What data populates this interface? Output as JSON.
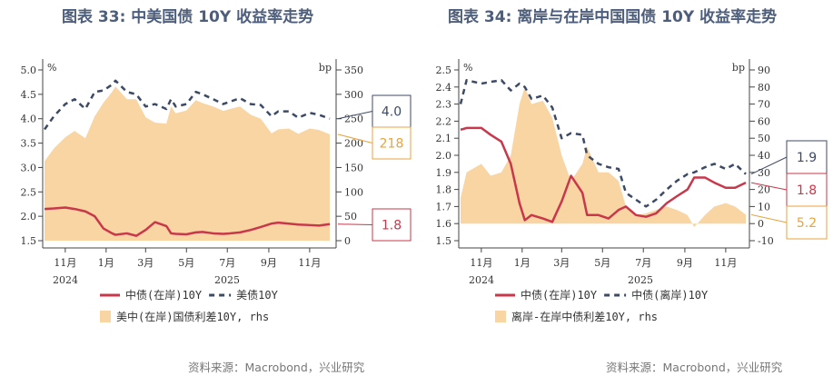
{
  "colors": {
    "onshore": "#c8374a",
    "us": "#3d4a66",
    "spread": "#f8d5a3",
    "spread_label": "#e8a33c",
    "title": "#4d5e7c"
  },
  "source": "资料来源：Macrobond，兴业研究",
  "chart_data": [
    {
      "type": "line",
      "title": "图表 33: 中美国债 10Y 收益率走势",
      "left_unit": "%",
      "right_unit": "bp",
      "ylim": [
        1.5,
        5.0
      ],
      "y2lim": [
        0,
        350
      ],
      "yticks": [
        "5.0",
        "4.5",
        "4.0",
        "3.5",
        "3.0",
        "2.5",
        "2.0",
        "1.5"
      ],
      "y2ticks": [
        "350",
        "300",
        "250",
        "200",
        "150",
        "100",
        "50",
        "0"
      ],
      "xticks": [
        "11月",
        "1月",
        "3月",
        "5月",
        "7月",
        "9月",
        "11月"
      ],
      "xtick_dates": [
        "2024-11-01",
        "2025-01-01",
        "2025-03-01",
        "2025-05-01",
        "2025-07-01",
        "2025-09-01",
        "2025-11-01"
      ],
      "years": [
        "2024",
        "2025"
      ],
      "x": [
        "2024-10-01",
        "2024-10-15",
        "2024-11-01",
        "2024-11-15",
        "2024-12-01",
        "2024-12-15",
        "2024-12-28",
        "2025-01-10",
        "2025-01-15",
        "2025-02-01",
        "2025-02-15",
        "2025-03-01",
        "2025-03-15",
        "2025-04-01",
        "2025-04-08",
        "2025-04-15",
        "2025-05-01",
        "2025-05-15",
        "2025-05-25",
        "2025-06-10",
        "2025-06-25",
        "2025-07-05",
        "2025-07-20",
        "2025-08-05",
        "2025-08-20",
        "2025-09-05",
        "2025-09-15",
        "2025-10-01",
        "2025-10-15",
        "2025-11-01",
        "2025-11-15",
        "2025-12-01"
      ],
      "series": [
        {
          "name": "中债(在岸)10Y",
          "axis": "left",
          "style": "solid",
          "values": [
            2.15,
            2.16,
            2.18,
            2.15,
            2.1,
            2.0,
            1.75,
            1.65,
            1.62,
            1.65,
            1.6,
            1.72,
            1.88,
            1.8,
            1.65,
            1.64,
            1.63,
            1.67,
            1.68,
            1.65,
            1.64,
            1.65,
            1.67,
            1.72,
            1.78,
            1.85,
            1.87,
            1.85,
            1.83,
            1.82,
            1.81,
            1.84
          ]
        },
        {
          "name": "美债10Y",
          "axis": "left",
          "style": "dash",
          "values": [
            3.78,
            4.05,
            4.3,
            4.4,
            4.2,
            4.55,
            4.58,
            4.7,
            4.78,
            4.55,
            4.5,
            4.25,
            4.3,
            4.2,
            4.4,
            4.25,
            4.3,
            4.55,
            4.5,
            4.4,
            4.3,
            4.35,
            4.42,
            4.3,
            4.28,
            4.05,
            4.15,
            4.15,
            4.02,
            4.12,
            4.08,
            4.0
          ]
        },
        {
          "name": "美中(在岸)国债利差10Y, rhs",
          "axis": "right",
          "style": "area",
          "values": [
            163,
            189,
            212,
            225,
            210,
            255,
            283,
            305,
            316,
            290,
            290,
            253,
            242,
            240,
            275,
            261,
            267,
            288,
            282,
            275,
            266,
            270,
            275,
            258,
            250,
            220,
            228,
            230,
            219,
            230,
            227,
            218
          ]
        }
      ],
      "callouts": [
        {
          "value": "4.0",
          "series": "us"
        },
        {
          "value": "218",
          "series": "spread"
        },
        {
          "value": "1.8",
          "series": "onshore"
        }
      ]
    },
    {
      "type": "line",
      "title": "图表 34: 离岸与在岸中国国债 10Y 收益率走势",
      "left_unit": "%",
      "right_unit": "bp",
      "ylim": [
        1.5,
        2.5
      ],
      "y2lim": [
        -10,
        90
      ],
      "yticks": [
        "2.5",
        "2.4",
        "2.3",
        "2.2",
        "2.1",
        "2.0",
        "1.9",
        "1.8",
        "1.7",
        "1.6",
        "1.5"
      ],
      "y2ticks": [
        "90",
        "80",
        "70",
        "60",
        "50",
        "40",
        "30",
        "20",
        "10",
        "0",
        "-10"
      ],
      "xticks": [
        "11月",
        "1月",
        "3月",
        "5月",
        "7月",
        "9月",
        "11月"
      ],
      "xtick_dates": [
        "2024-11-01",
        "2025-01-01",
        "2025-03-01",
        "2025-05-01",
        "2025-07-01",
        "2025-09-01",
        "2025-11-01"
      ],
      "years": [
        "2024",
        "2025"
      ],
      "x": [
        "2024-10-01",
        "2024-10-10",
        "2024-11-01",
        "2024-11-15",
        "2024-12-01",
        "2024-12-15",
        "2024-12-28",
        "2025-01-05",
        "2025-01-15",
        "2025-02-01",
        "2025-02-15",
        "2025-03-01",
        "2025-03-15",
        "2025-04-01",
        "2025-04-08",
        "2025-04-25",
        "2025-05-10",
        "2025-05-25",
        "2025-06-05",
        "2025-06-20",
        "2025-07-05",
        "2025-07-20",
        "2025-08-05",
        "2025-08-20",
        "2025-09-05",
        "2025-09-15",
        "2025-10-01",
        "2025-10-15",
        "2025-11-01",
        "2025-11-15",
        "2025-12-01"
      ],
      "series": [
        {
          "name": "中债(在岸)10Y",
          "axis": "left",
          "style": "solid",
          "values": [
            2.15,
            2.16,
            2.16,
            2.12,
            2.08,
            1.95,
            1.72,
            1.62,
            1.65,
            1.63,
            1.61,
            1.73,
            1.88,
            1.78,
            1.65,
            1.65,
            1.63,
            1.68,
            1.7,
            1.65,
            1.64,
            1.66,
            1.72,
            1.76,
            1.8,
            1.87,
            1.87,
            1.84,
            1.81,
            1.81,
            1.84
          ]
        },
        {
          "name": "中债(离岸)10Y",
          "axis": "left",
          "style": "dash",
          "values": [
            2.3,
            2.44,
            2.42,
            2.43,
            2.44,
            2.38,
            2.42,
            2.4,
            2.33,
            2.35,
            2.28,
            2.1,
            2.13,
            2.12,
            2.0,
            1.95,
            1.93,
            1.92,
            1.78,
            1.74,
            1.7,
            1.74,
            1.8,
            1.85,
            1.89,
            1.9,
            1.93,
            1.95,
            1.92,
            1.95,
            1.89
          ]
        },
        {
          "name": "离岸-在岸中债利差10Y, rhs",
          "axis": "right",
          "style": "area",
          "values": [
            15,
            30,
            35,
            28,
            30,
            40,
            70,
            80,
            70,
            72,
            62,
            40,
            25,
            35,
            45,
            30,
            30,
            25,
            10,
            5,
            6,
            8,
            10,
            8,
            5,
            -2,
            5,
            10,
            12,
            10,
            5.2
          ]
        }
      ],
      "callouts": [
        {
          "value": "1.9",
          "series": "offshore"
        },
        {
          "value": "1.8",
          "series": "onshore"
        },
        {
          "value": "5.2",
          "series": "spread"
        }
      ]
    }
  ]
}
